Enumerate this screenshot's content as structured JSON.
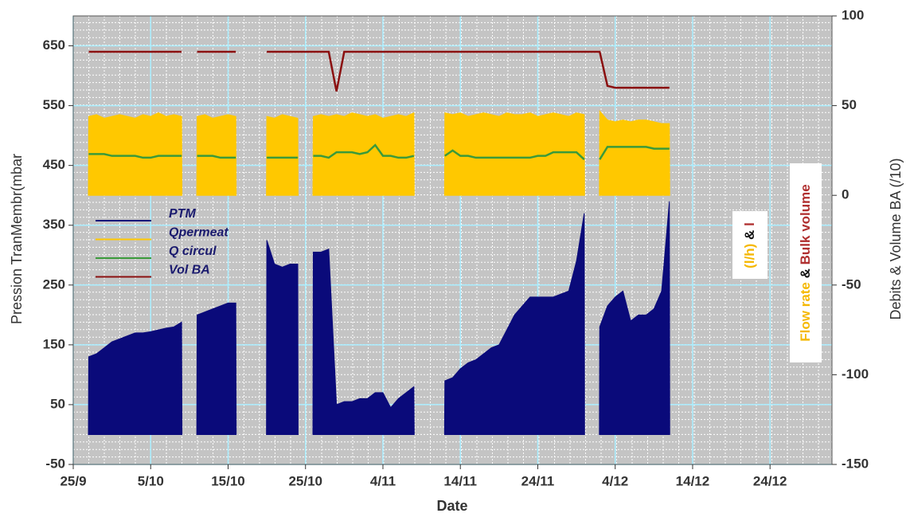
{
  "chart_data": {
    "type": "line",
    "xlabel": "Date",
    "ylabel": "Pression TranMembr(mbar",
    "y2label": "Debits & Volume BA (/10)",
    "x": [
      2,
      3,
      4,
      5,
      6,
      7,
      8,
      9,
      10,
      11,
      12,
      13,
      14,
      15,
      16,
      17,
      18,
      19,
      20,
      21,
      22,
      23,
      24,
      25,
      26,
      27,
      28,
      29,
      30,
      31,
      32,
      33,
      34,
      35,
      36,
      37,
      38,
      39,
      40,
      41,
      42,
      43,
      44,
      45,
      46,
      47,
      48,
      49,
      50,
      51,
      52,
      53,
      54,
      55,
      56,
      57,
      58,
      59,
      60,
      61,
      62,
      63,
      64,
      65,
      66,
      67,
      68,
      69,
      70,
      71,
      72,
      73,
      74,
      75,
      76,
      77
    ],
    "xlim": [
      0,
      98
    ],
    "xticks": [
      {
        "value": 0,
        "label": "25/9"
      },
      {
        "value": 10,
        "label": "5/10"
      },
      {
        "value": 20,
        "label": "15/10"
      },
      {
        "value": 30,
        "label": "25/10"
      },
      {
        "value": 40,
        "label": "4/11"
      },
      {
        "value": 50,
        "label": "14/11"
      },
      {
        "value": 60,
        "label": "24/11"
      },
      {
        "value": 70,
        "label": "4/12"
      },
      {
        "value": 80,
        "label": "14/12"
      },
      {
        "value": 90,
        "label": "24/12"
      }
    ],
    "ylim": [
      -50,
      700
    ],
    "yticks": [
      -50,
      50,
      150,
      250,
      350,
      450,
      550,
      650
    ],
    "y2lim": [
      -150,
      100
    ],
    "y2ticks": [
      -150,
      -100,
      -50,
      0,
      50,
      100
    ],
    "grid": true,
    "legend": "center left",
    "series": [
      {
        "name": "PTM",
        "color": "#0a0a7a",
        "kind": "area",
        "values": [
          130,
          135,
          145,
          155,
          160,
          165,
          170,
          170,
          172,
          175,
          178,
          180,
          188,
          null,
          200,
          205,
          210,
          215,
          220,
          220,
          null,
          null,
          null,
          325,
          285,
          280,
          285,
          285,
          null,
          305,
          305,
          310,
          50,
          55,
          55,
          60,
          60,
          70,
          70,
          45,
          60,
          70,
          80,
          null,
          null,
          null,
          90,
          95,
          110,
          120,
          125,
          135,
          145,
          150,
          175,
          200,
          215,
          230,
          230,
          230,
          230,
          235,
          240,
          290,
          370,
          null,
          180,
          215,
          230,
          240,
          190,
          200,
          200,
          210,
          240,
          390
        ]
      },
      {
        "name": "Qpermeat",
        "color": "#ffc800",
        "kind": "area",
        "axis": "y2",
        "values": [
          44,
          45,
          43,
          44,
          45,
          44,
          43,
          45,
          44,
          46,
          44,
          45,
          44,
          null,
          44,
          45,
          43,
          44,
          45,
          44,
          null,
          null,
          null,
          44,
          43,
          45,
          44,
          43,
          null,
          44,
          45,
          44,
          45,
          44,
          46,
          45,
          44,
          45,
          43,
          44,
          45,
          44,
          46,
          null,
          null,
          null,
          46,
          45,
          46,
          44,
          45,
          46,
          45,
          44,
          46,
          45,
          45,
          46,
          44,
          45,
          46,
          45,
          44,
          46,
          45,
          null,
          47,
          42,
          41,
          42,
          41,
          42,
          42,
          41,
          40,
          40
        ]
      },
      {
        "name": "Q circul",
        "color": "#3a9a3a",
        "kind": "line",
        "axis": "y2",
        "values": [
          23,
          23,
          23,
          22,
          22,
          22,
          22,
          21,
          21,
          22,
          22,
          22,
          22,
          null,
          22,
          22,
          22,
          21,
          21,
          21,
          null,
          null,
          null,
          21,
          21,
          21,
          21,
          21,
          null,
          22,
          22,
          21,
          24,
          24,
          24,
          23,
          24,
          28,
          22,
          22,
          21,
          21,
          22,
          null,
          null,
          null,
          22,
          25,
          22,
          22,
          21,
          21,
          21,
          21,
          21,
          21,
          21,
          21,
          22,
          22,
          24,
          24,
          24,
          24,
          20,
          null,
          20,
          27,
          27,
          27,
          27,
          27,
          27,
          26,
          26,
          26
        ]
      },
      {
        "name": "Vol BA",
        "color": "#8b1010",
        "kind": "line",
        "axis": "y2",
        "values": [
          80,
          80,
          80,
          80,
          80,
          80,
          80,
          80,
          80,
          80,
          80,
          80,
          80,
          null,
          80,
          80,
          80,
          80,
          80,
          80,
          null,
          null,
          null,
          80,
          80,
          80,
          80,
          80,
          80,
          80,
          80,
          80,
          58,
          80,
          80,
          80,
          80,
          80,
          80,
          80,
          80,
          80,
          80,
          80,
          80,
          80,
          80,
          80,
          80,
          80,
          80,
          80,
          80,
          80,
          80,
          80,
          80,
          80,
          80,
          80,
          80,
          80,
          80,
          80,
          80,
          80,
          80,
          61,
          60,
          60,
          60,
          60,
          60,
          60,
          60,
          60
        ]
      }
    ],
    "annotation": {
      "line1": [
        "Flow rate",
        "&",
        "Bulk volume"
      ],
      "line2": [
        "(l/h)",
        "&",
        "l"
      ]
    }
  }
}
